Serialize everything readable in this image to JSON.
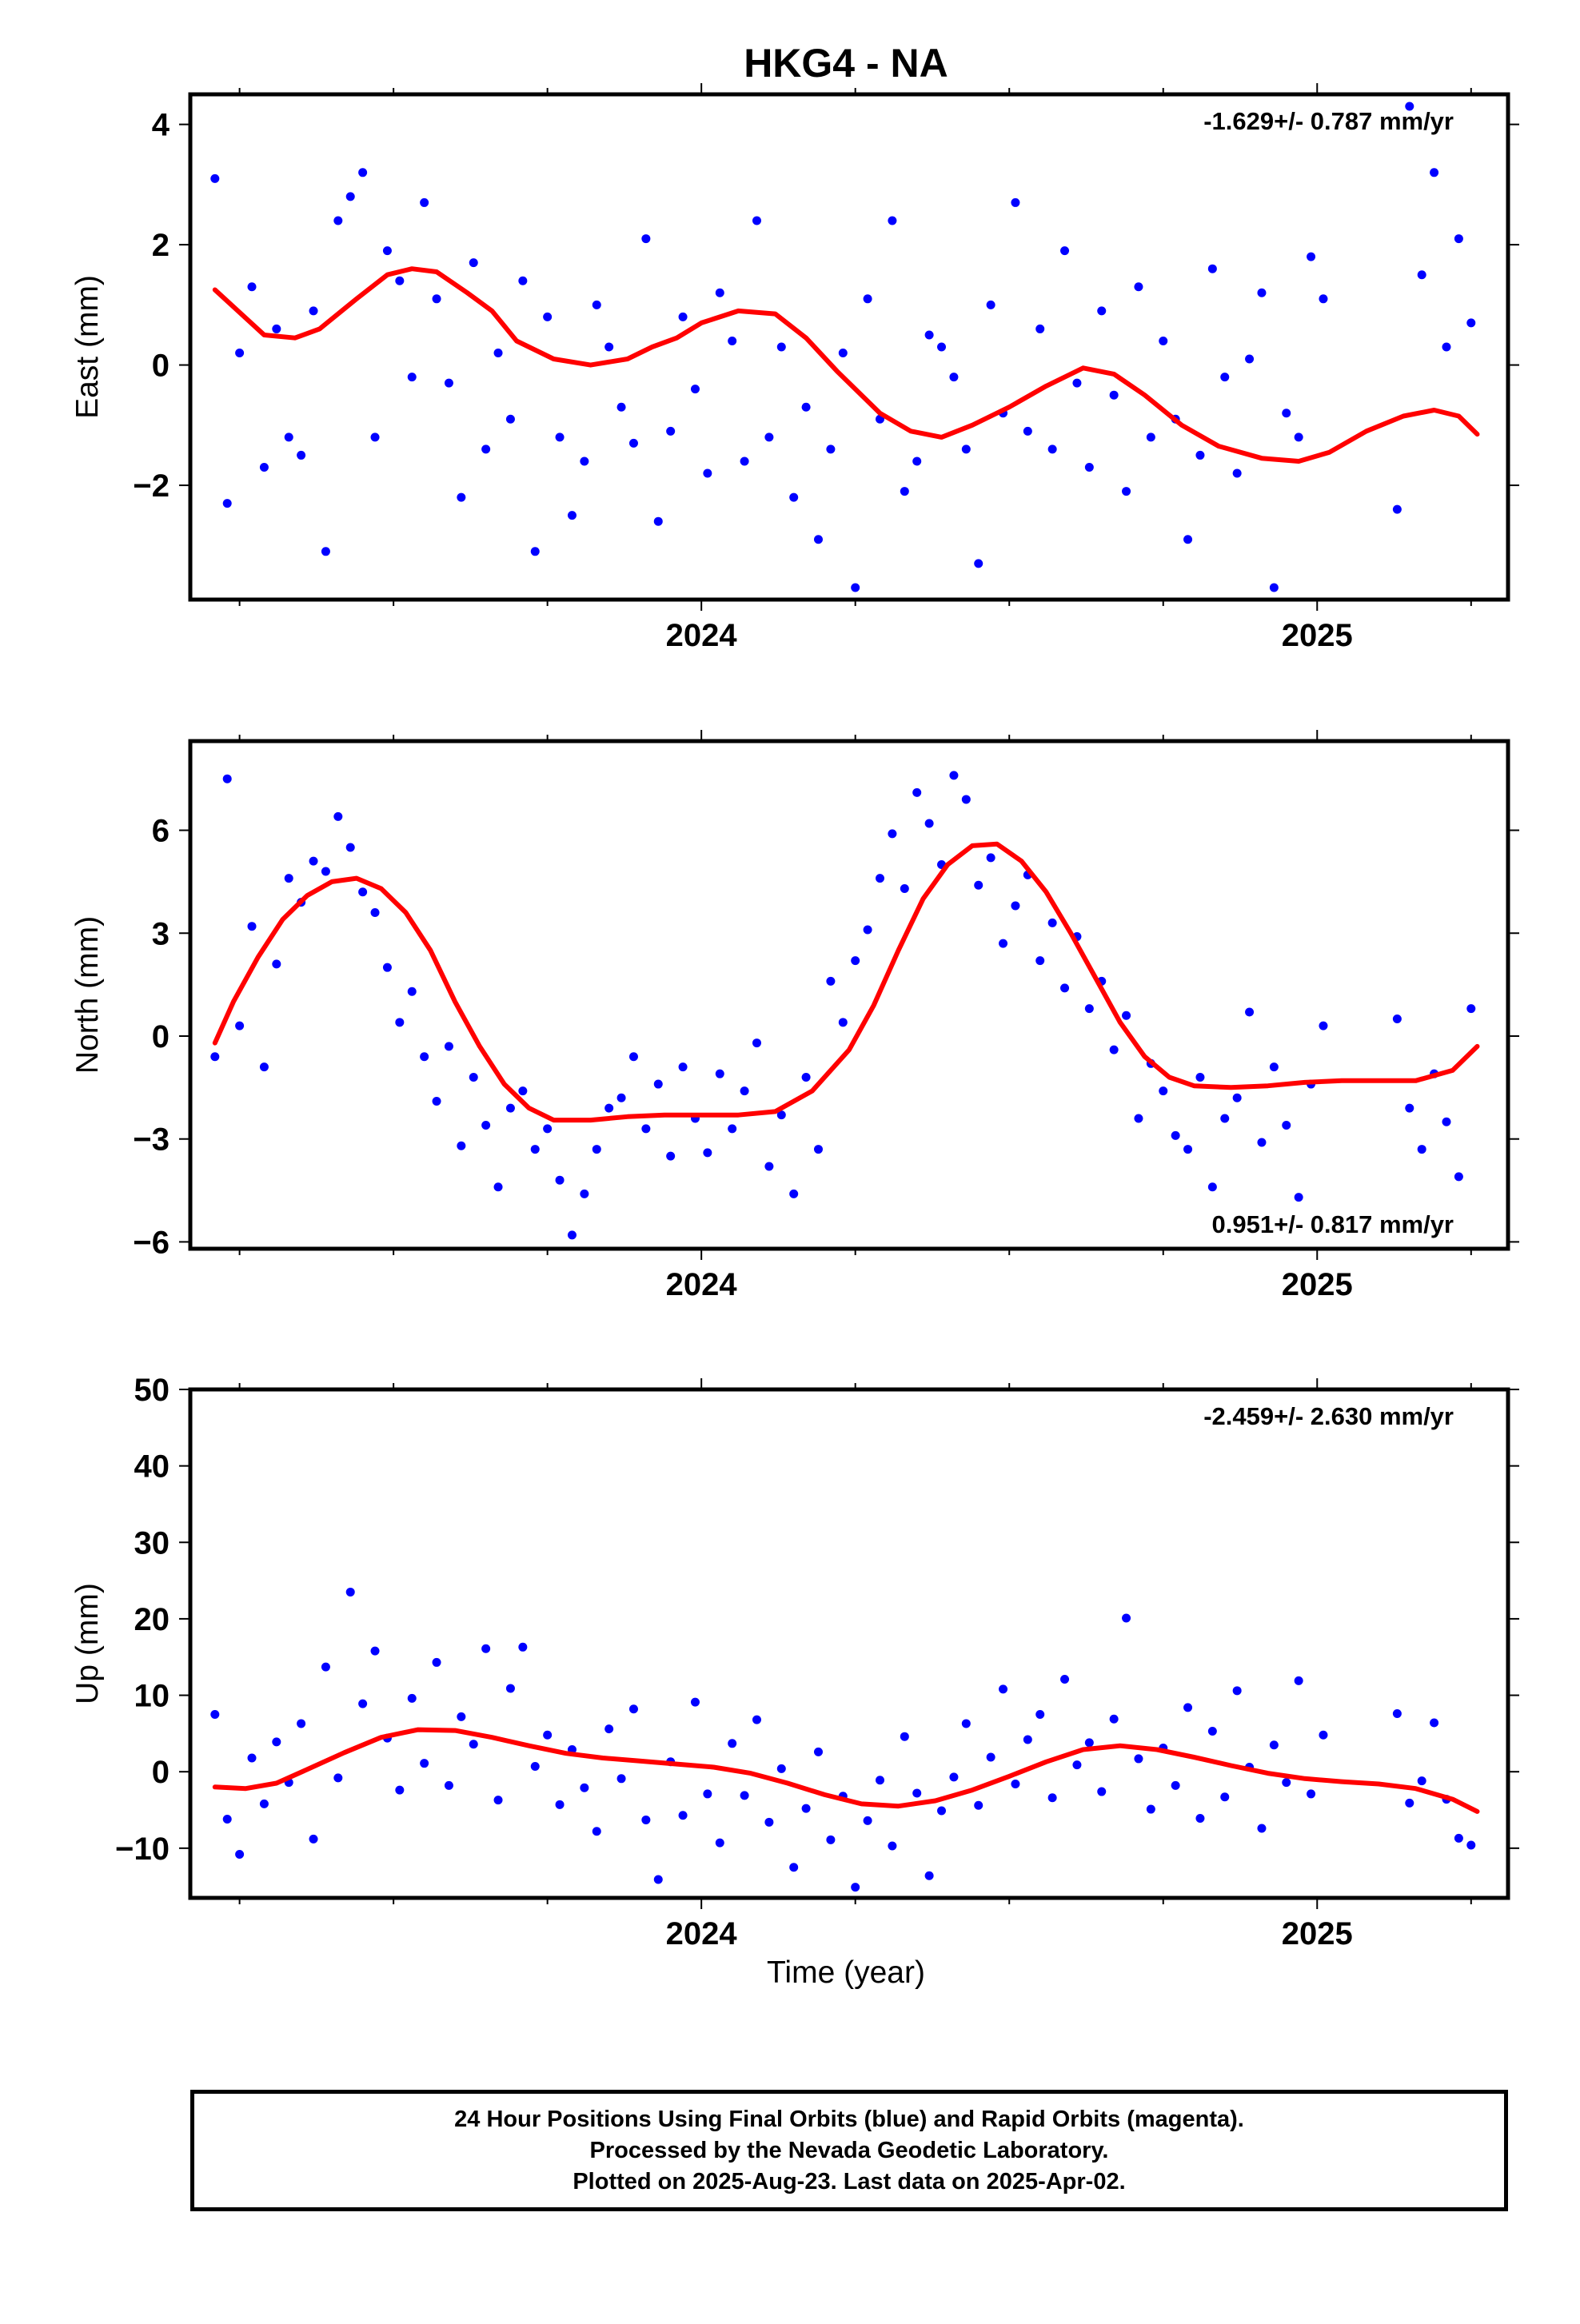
{
  "chart_data": {
    "title": "HKG4 - NA",
    "xlabel": "Time (year)",
    "x_range": [
      2023.17,
      2025.31
    ],
    "x_ticks_major": [
      2024,
      2025
    ],
    "x_tick_labels": [
      "2024",
      "2025"
    ],
    "colors": {
      "data": "#0000ff",
      "model": "#ff0000",
      "frame": "#000000"
    },
    "panels": [
      {
        "id": "east",
        "type": "scatter",
        "ylabel": "East (mm)",
        "ylim": [
          -3.9,
          4.5
        ],
        "y_ticks": [
          -2,
          0,
          2,
          4
        ],
        "y_tick_labels": [
          "−2",
          "0",
          "2",
          "4"
        ],
        "rate_label": "-1.629+/- 0.787 mm/yr",
        "rate_position": "top-right",
        "model_line": {
          "x": [
            2023.21,
            2023.29,
            2023.34,
            2023.38,
            2023.44,
            2023.49,
            2023.53,
            2023.57,
            2023.62,
            2023.66,
            2023.7,
            2023.76,
            2023.82,
            2023.88,
            2023.92,
            2023.96,
            2024.0,
            2024.06,
            2024.12,
            2024.17,
            2024.22,
            2024.29,
            2024.34,
            2024.39,
            2024.44,
            2024.5,
            2024.56,
            2024.62,
            2024.67,
            2024.72,
            2024.78,
            2024.84,
            2024.91,
            2024.97,
            2025.02,
            2025.08,
            2025.14,
            2025.19,
            2025.23,
            2025.26
          ],
          "y": [
            1.25,
            0.5,
            0.45,
            0.6,
            1.1,
            1.5,
            1.6,
            1.55,
            1.2,
            0.9,
            0.4,
            0.1,
            0.0,
            0.1,
            0.3,
            0.45,
            0.7,
            0.9,
            0.85,
            0.45,
            -0.1,
            -0.8,
            -1.1,
            -1.2,
            -1.0,
            -0.7,
            -0.35,
            -0.05,
            -0.15,
            -0.5,
            -1.0,
            -1.35,
            -1.55,
            -1.6,
            -1.45,
            -1.1,
            -0.85,
            -0.75,
            -0.85,
            -1.15
          ]
        },
        "points": {
          "x": [
            2023.21,
            2023.23,
            2023.25,
            2023.27,
            2023.29,
            2023.31,
            2023.33,
            2023.35,
            2023.37,
            2023.39,
            2023.41,
            2023.43,
            2023.45,
            2023.47,
            2023.49,
            2023.51,
            2023.53,
            2023.55,
            2023.57,
            2023.59,
            2023.61,
            2023.63,
            2023.65,
            2023.67,
            2023.69,
            2023.71,
            2023.73,
            2023.75,
            2023.77,
            2023.79,
            2023.81,
            2023.83,
            2023.85,
            2023.87,
            2023.89,
            2023.91,
            2023.93,
            2023.95,
            2023.97,
            2023.99,
            2024.01,
            2024.03,
            2024.05,
            2024.07,
            2024.09,
            2024.11,
            2024.13,
            2024.15,
            2024.17,
            2024.19,
            2024.21,
            2024.23,
            2024.25,
            2024.27,
            2024.29,
            2024.31,
            2024.33,
            2024.35,
            2024.37,
            2024.39,
            2024.41,
            2024.43,
            2024.45,
            2024.47,
            2024.49,
            2024.51,
            2024.53,
            2024.55,
            2024.57,
            2024.59,
            2024.61,
            2024.63,
            2024.65,
            2024.67,
            2024.69,
            2024.71,
            2024.73,
            2024.75,
            2024.77,
            2024.79,
            2024.81,
            2024.83,
            2024.85,
            2024.87,
            2024.89,
            2024.91,
            2024.93,
            2024.95,
            2024.97,
            2024.99,
            2025.01,
            2025.13,
            2025.15,
            2025.17,
            2025.19,
            2025.21,
            2025.23,
            2025.25
          ],
          "y": [
            3.1,
            -2.3,
            0.2,
            1.3,
            -1.7,
            0.6,
            -1.2,
            -1.5,
            0.9,
            -3.1,
            2.4,
            2.8,
            3.2,
            -1.2,
            1.9,
            1.4,
            -0.2,
            2.7,
            1.1,
            -0.3,
            -2.2,
            1.7,
            -1.4,
            0.2,
            -0.9,
            1.4,
            -3.1,
            0.8,
            -1.2,
            -2.5,
            -1.6,
            1.0,
            0.3,
            -0.7,
            -1.3,
            2.1,
            -2.6,
            -1.1,
            0.8,
            -0.4,
            -1.8,
            1.2,
            0.4,
            -1.6,
            2.4,
            -1.2,
            0.3,
            -2.2,
            -0.7,
            -2.9,
            -1.4,
            0.2,
            -3.7,
            1.1,
            -0.9,
            2.4,
            -2.1,
            -1.6,
            0.5,
            0.3,
            -0.2,
            -1.4,
            -3.3,
            1.0,
            -0.8,
            2.7,
            -1.1,
            0.6,
            -1.4,
            1.9,
            -0.3,
            -1.7,
            0.9,
            -0.5,
            -2.1,
            1.3,
            -1.2,
            0.4,
            -0.9,
            -2.9,
            -1.5,
            1.6,
            -0.2,
            -1.8,
            0.1,
            1.2,
            -3.7,
            -0.8,
            -1.2,
            1.8,
            1.1,
            -2.4,
            4.3,
            1.5,
            3.2,
            0.3,
            2.1,
            0.7
          ]
        }
      },
      {
        "id": "north",
        "type": "scatter",
        "ylabel": "North (mm)",
        "ylim": [
          -6.2,
          8.6
        ],
        "y_ticks": [
          -6,
          -3,
          0,
          3,
          6
        ],
        "y_tick_labels": [
          "−6",
          "−3",
          "0",
          "3",
          "6"
        ],
        "rate_label": "0.951+/- 0.817 mm/yr",
        "rate_position": "bottom-right",
        "model_line": {
          "x": [
            2023.21,
            2023.24,
            2023.28,
            2023.32,
            2023.36,
            2023.4,
            2023.44,
            2023.48,
            2023.52,
            2023.56,
            2023.6,
            2023.64,
            2023.68,
            2023.72,
            2023.76,
            2023.82,
            2023.88,
            2023.94,
            2024.0,
            2024.06,
            2024.12,
            2024.18,
            2024.24,
            2024.28,
            2024.32,
            2024.36,
            2024.4,
            2024.44,
            2024.48,
            2024.52,
            2024.56,
            2024.6,
            2024.64,
            2024.68,
            2024.72,
            2024.76,
            2024.8,
            2024.86,
            2024.92,
            2024.98,
            2025.04,
            2025.1,
            2025.16,
            2025.22,
            2025.26
          ],
          "y": [
            -0.2,
            1.0,
            2.3,
            3.4,
            4.1,
            4.5,
            4.6,
            4.3,
            3.6,
            2.5,
            1.0,
            -0.3,
            -1.4,
            -2.1,
            -2.45,
            -2.45,
            -2.35,
            -2.3,
            -2.3,
            -2.3,
            -2.2,
            -1.6,
            -0.4,
            0.9,
            2.5,
            4.0,
            5.0,
            5.55,
            5.6,
            5.1,
            4.2,
            3.0,
            1.7,
            0.4,
            -0.6,
            -1.2,
            -1.45,
            -1.5,
            -1.45,
            -1.35,
            -1.3,
            -1.3,
            -1.3,
            -1.0,
            -0.3
          ]
        },
        "points": {
          "x": [
            2023.21,
            2023.23,
            2023.25,
            2023.27,
            2023.29,
            2023.31,
            2023.33,
            2023.35,
            2023.37,
            2023.39,
            2023.41,
            2023.43,
            2023.45,
            2023.47,
            2023.49,
            2023.51,
            2023.53,
            2023.55,
            2023.57,
            2023.59,
            2023.61,
            2023.63,
            2023.65,
            2023.67,
            2023.69,
            2023.71,
            2023.73,
            2023.75,
            2023.77,
            2023.79,
            2023.81,
            2023.83,
            2023.85,
            2023.87,
            2023.89,
            2023.91,
            2023.93,
            2023.95,
            2023.97,
            2023.99,
            2024.01,
            2024.03,
            2024.05,
            2024.07,
            2024.09,
            2024.11,
            2024.13,
            2024.15,
            2024.17,
            2024.19,
            2024.21,
            2024.23,
            2024.25,
            2024.27,
            2024.29,
            2024.31,
            2024.33,
            2024.35,
            2024.37,
            2024.39,
            2024.41,
            2024.43,
            2024.45,
            2024.47,
            2024.49,
            2024.51,
            2024.53,
            2024.55,
            2024.57,
            2024.59,
            2024.61,
            2024.63,
            2024.65,
            2024.67,
            2024.69,
            2024.71,
            2024.73,
            2024.75,
            2024.77,
            2024.79,
            2024.81,
            2024.83,
            2024.85,
            2024.87,
            2024.89,
            2024.91,
            2024.93,
            2024.95,
            2024.97,
            2024.99,
            2025.01,
            2025.13,
            2025.15,
            2025.17,
            2025.19,
            2025.21,
            2025.23,
            2025.25
          ],
          "y": [
            -0.6,
            7.5,
            0.3,
            3.2,
            -0.9,
            2.1,
            4.6,
            3.9,
            5.1,
            4.8,
            6.4,
            5.5,
            4.2,
            3.6,
            2.0,
            0.4,
            1.3,
            -0.6,
            -1.9,
            -0.3,
            -3.2,
            -1.2,
            -2.6,
            -4.4,
            -2.1,
            -1.6,
            -3.3,
            -2.7,
            -4.2,
            -5.8,
            -4.6,
            -3.3,
            -2.1,
            -1.8,
            -0.6,
            -2.7,
            -1.4,
            -3.5,
            -0.9,
            -2.4,
            -3.4,
            -1.1,
            -2.7,
            -1.6,
            -0.2,
            -3.8,
            -2.3,
            -4.6,
            -1.2,
            -3.3,
            1.6,
            0.4,
            2.2,
            3.1,
            4.6,
            5.9,
            4.3,
            7.1,
            6.2,
            5.0,
            7.6,
            6.9,
            4.4,
            5.2,
            2.7,
            3.8,
            4.7,
            2.2,
            3.3,
            1.4,
            2.9,
            0.8,
            1.6,
            -0.4,
            0.6,
            -2.4,
            -0.8,
            -1.6,
            -2.9,
            -3.3,
            -1.2,
            -4.4,
            -2.4,
            -1.8,
            0.7,
            -3.1,
            -0.9,
            -2.6,
            -4.7,
            -1.4,
            0.3,
            0.5,
            -2.1,
            -3.3,
            -1.1,
            -2.5,
            -4.1,
            0.8
          ]
        }
      },
      {
        "id": "up",
        "type": "scatter",
        "ylabel": "Up (mm)",
        "ylim": [
          -16.5,
          50
        ],
        "y_ticks": [
          -10,
          0,
          10,
          20,
          30,
          40,
          50
        ],
        "y_tick_labels": [
          "−10",
          "0",
          "10",
          "20",
          "30",
          "40",
          "50"
        ],
        "rate_label": "-2.459+/- 2.630 mm/yr",
        "rate_position": "top-right",
        "model_line": {
          "x": [
            2023.21,
            2023.26,
            2023.31,
            2023.36,
            2023.42,
            2023.48,
            2023.54,
            2023.6,
            2023.66,
            2023.72,
            2023.78,
            2023.84,
            2023.9,
            2023.96,
            2024.02,
            2024.08,
            2024.14,
            2024.2,
            2024.26,
            2024.32,
            2024.38,
            2024.44,
            2024.5,
            2024.56,
            2024.62,
            2024.68,
            2024.74,
            2024.8,
            2024.86,
            2024.92,
            2024.98,
            2025.04,
            2025.1,
            2025.16,
            2025.22,
            2025.26
          ],
          "y": [
            -2.0,
            -2.2,
            -1.5,
            0.3,
            2.5,
            4.5,
            5.5,
            5.4,
            4.5,
            3.4,
            2.4,
            1.8,
            1.4,
            1.0,
            0.6,
            -0.2,
            -1.5,
            -3.0,
            -4.2,
            -4.5,
            -3.8,
            -2.4,
            -0.6,
            1.3,
            2.9,
            3.4,
            2.9,
            1.9,
            0.8,
            -0.2,
            -0.9,
            -1.3,
            -1.6,
            -2.2,
            -3.6,
            -5.2
          ]
        },
        "points": {
          "x": [
            2023.21,
            2023.23,
            2023.25,
            2023.27,
            2023.29,
            2023.31,
            2023.33,
            2023.35,
            2023.37,
            2023.39,
            2023.41,
            2023.43,
            2023.45,
            2023.47,
            2023.49,
            2023.51,
            2023.53,
            2023.55,
            2023.57,
            2023.59,
            2023.61,
            2023.63,
            2023.65,
            2023.67,
            2023.69,
            2023.71,
            2023.73,
            2023.75,
            2023.77,
            2023.79,
            2023.81,
            2023.83,
            2023.85,
            2023.87,
            2023.89,
            2023.91,
            2023.93,
            2023.95,
            2023.97,
            2023.99,
            2024.01,
            2024.03,
            2024.05,
            2024.07,
            2024.09,
            2024.11,
            2024.13,
            2024.15,
            2024.17,
            2024.19,
            2024.21,
            2024.23,
            2024.25,
            2024.27,
            2024.29,
            2024.31,
            2024.33,
            2024.35,
            2024.37,
            2024.39,
            2024.41,
            2024.43,
            2024.45,
            2024.47,
            2024.49,
            2024.51,
            2024.53,
            2024.55,
            2024.57,
            2024.59,
            2024.61,
            2024.63,
            2024.65,
            2024.67,
            2024.69,
            2024.71,
            2024.73,
            2024.75,
            2024.77,
            2024.79,
            2024.81,
            2024.83,
            2024.85,
            2024.87,
            2024.89,
            2024.91,
            2024.93,
            2024.95,
            2024.97,
            2024.99,
            2025.01,
            2025.13,
            2025.15,
            2025.17,
            2025.19,
            2025.21,
            2025.23,
            2025.25
          ],
          "y": [
            7.5,
            -6.2,
            -10.8,
            1.8,
            -4.2,
            3.9,
            -1.4,
            6.3,
            -8.8,
            13.7,
            -0.8,
            23.5,
            8.9,
            15.8,
            4.4,
            -2.4,
            9.6,
            1.1,
            14.3,
            -1.8,
            7.2,
            3.6,
            16.1,
            -3.7,
            10.9,
            16.3,
            0.7,
            4.8,
            -4.3,
            2.9,
            -2.1,
            -7.8,
            5.6,
            -0.9,
            8.2,
            -6.3,
            -14.1,
            1.3,
            -5.7,
            9.1,
            -2.9,
            -9.3,
            3.7,
            -3.1,
            6.8,
            -6.6,
            0.4,
            -12.5,
            -4.8,
            2.6,
            -8.9,
            -3.2,
            -15.1,
            -6.4,
            -1.1,
            -9.7,
            4.6,
            -2.8,
            -13.6,
            -5.1,
            -0.7,
            6.3,
            -4.4,
            1.9,
            10.8,
            -1.6,
            4.2,
            7.5,
            -3.4,
            12.1,
            0.9,
            3.8,
            -2.6,
            6.9,
            20.1,
            1.7,
            -4.9,
            3.1,
            -1.8,
            8.4,
            -6.1,
            5.3,
            -3.3,
            10.6,
            0.6,
            -7.4,
            3.5,
            -1.4,
            11.9,
            -2.9,
            4.8,
            7.6,
            -4.1,
            -1.2,
            6.4,
            -3.6,
            -8.7,
            -9.6
          ]
        }
      }
    ],
    "annotations": [
      "24 Hour Positions Using Final Orbits (blue) and Rapid Orbits (magenta).",
      "Processed by the Nevada Geodetic Laboratory.",
      "Plotted on 2025-Aug-23. Last data on 2025-Apr-02."
    ]
  }
}
